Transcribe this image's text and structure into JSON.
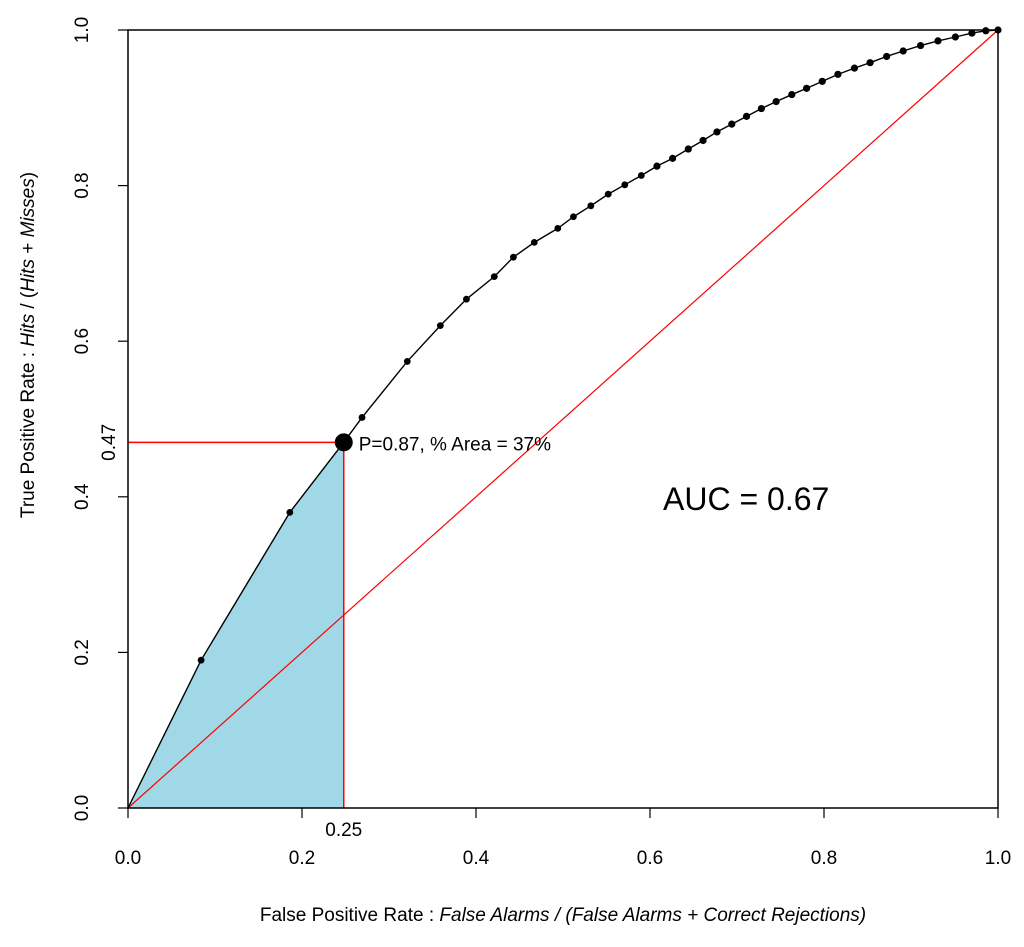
{
  "chart_data": {
    "type": "line",
    "xlabel_prefix": "False Positive Rate : ",
    "xlabel_italic": "False Alarms / (False Alarms + Correct Rejections)",
    "ylabel_prefix": "True Positive Rate : ",
    "ylabel_italic_1": "Hits",
    "ylabel_mid": " / (",
    "ylabel_italic_2": "Hits",
    "ylabel_mid2": " + ",
    "ylabel_italic_3": "Misses",
    "ylabel_end": ")",
    "xlim": [
      0,
      1
    ],
    "ylim": [
      0,
      1
    ],
    "x_ticks": [
      "0.0",
      "0.2",
      "0.4",
      "0.6",
      "0.8",
      "1.0"
    ],
    "y_ticks": [
      "0.0",
      "0.2",
      "0.4",
      "0.6",
      "0.8",
      "1.0"
    ],
    "grid": false,
    "series": [
      {
        "values_x": [
          0.0,
          0.084,
          0.186,
          0.248,
          0.269,
          0.321,
          0.359,
          0.389,
          0.421,
          0.443,
          0.467,
          0.494,
          0.512,
          0.532,
          0.552,
          0.571,
          0.59,
          0.608,
          0.626,
          0.644,
          0.661,
          0.677,
          0.694,
          0.711,
          0.728,
          0.745,
          0.763,
          0.78,
          0.798,
          0.816,
          0.835,
          0.853,
          0.872,
          0.891,
          0.911,
          0.931,
          0.951,
          0.97,
          0.986,
          1.0
        ],
        "values_y": [
          0.0,
          0.19,
          0.38,
          0.47,
          0.502,
          0.574,
          0.62,
          0.654,
          0.683,
          0.708,
          0.727,
          0.745,
          0.76,
          0.774,
          0.789,
          0.801,
          0.813,
          0.825,
          0.835,
          0.847,
          0.858,
          0.869,
          0.879,
          0.889,
          0.899,
          0.908,
          0.917,
          0.925,
          0.934,
          0.943,
          0.951,
          0.958,
          0.966,
          0.973,
          0.98,
          0.986,
          0.991,
          0.996,
          0.999,
          1.0
        ]
      }
    ],
    "diagonal": {
      "from": [
        0,
        0
      ],
      "to": [
        1,
        1
      ],
      "color": "#ff0000"
    },
    "highlight": {
      "x": 0.248,
      "y": 0.47,
      "x_label": "0.25",
      "y_label": "0.47",
      "annotation": "P=0.87, % Area = 37%",
      "line_color": "#ff0000",
      "fill_color": "#a0d8e8"
    },
    "auc_text": "AUC = 0.67"
  }
}
